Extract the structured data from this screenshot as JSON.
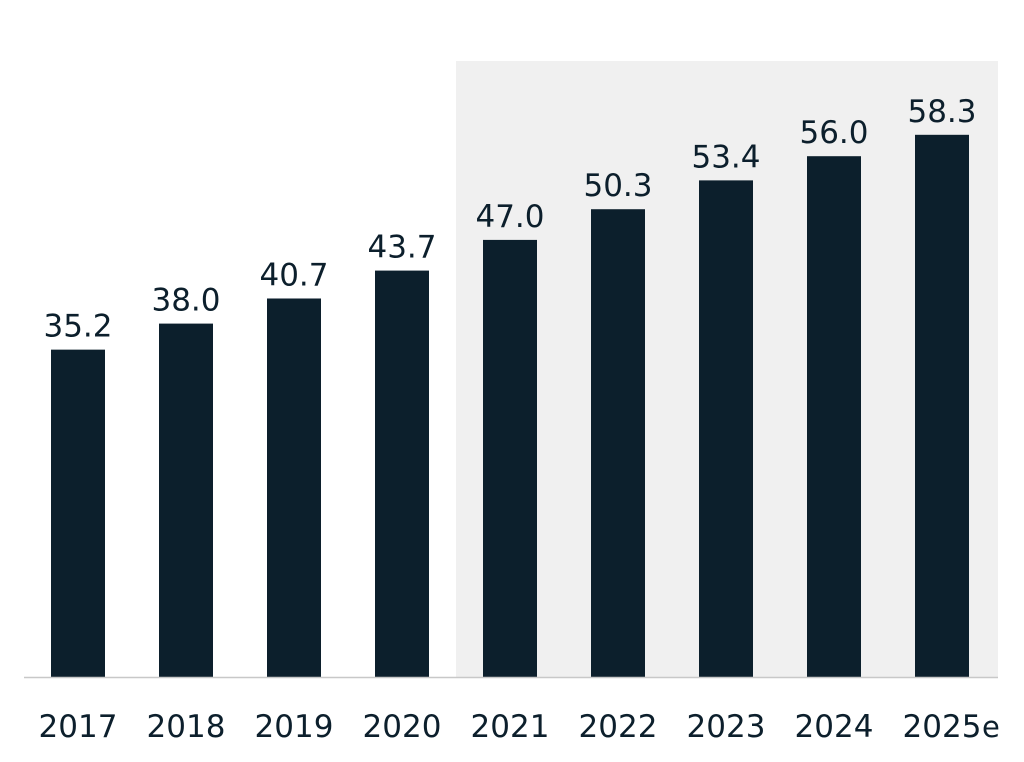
{
  "chart_data": {
    "type": "bar",
    "categories": [
      "2017",
      "2018",
      "2019",
      "2020",
      "2021",
      "2022",
      "2023",
      "2024",
      "2025"
    ],
    "values": [
      35.2,
      38.0,
      40.7,
      43.7,
      47.0,
      50.3,
      53.4,
      56.0,
      58.3
    ],
    "value_labels": [
      "35.2",
      "38.0",
      "40.7",
      "43.7",
      "47.0",
      "50.3",
      "53.4",
      "56.0",
      "58.3"
    ],
    "estimate_suffix": "e",
    "estimate_category": "2025",
    "highlight_range": [
      "2021",
      "2025"
    ],
    "ylim": [
      0,
      62
    ],
    "grid": false,
    "legend": "none",
    "title": "",
    "xlabel": "",
    "ylabel": ""
  },
  "colors": {
    "bar": "#0c1f2c",
    "text": "#0c1f2c",
    "highlight_bg": "#f0f0f0",
    "axis": "#c8c8c8"
  }
}
